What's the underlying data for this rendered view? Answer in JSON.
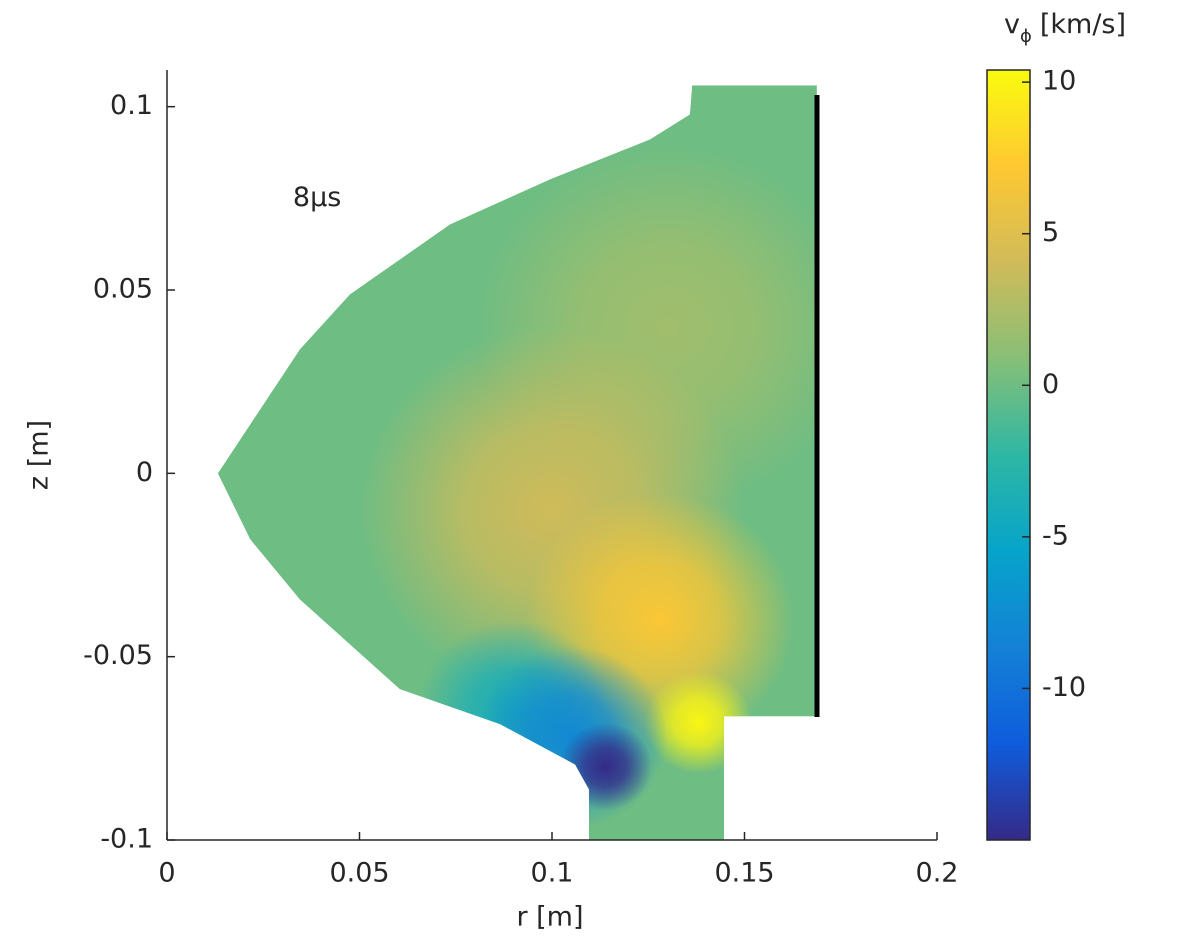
{
  "chart_data": {
    "type": "contour",
    "annotation": {
      "text": "8μs",
      "r": 0.039,
      "z": 0.075,
      "color": "#ff0000"
    },
    "x_label": "r [m]",
    "y_label": "z [m]",
    "xlim": [
      0,
      0.2
    ],
    "xticks": [
      0,
      0.05,
      0.1,
      0.15,
      0.2
    ],
    "ylim": [
      -0.1,
      0.11
    ],
    "yticks": [
      -0.1,
      -0.05,
      0,
      0.05,
      0.1
    ],
    "colorbar_label": {
      "main": "v",
      "sub": "ϕ",
      "unit": "[km/s]"
    },
    "clim": [
      -15,
      10.4
    ],
    "cticks": [
      -10,
      -5,
      0,
      5,
      10
    ],
    "colormap": [
      "#352a87",
      "#0f5cdd",
      "#1481d6",
      "#06a4ca",
      "#2eb7a4",
      "#87bf77",
      "#d1bb59",
      "#fec832",
      "#f9fb0e"
    ],
    "background_value": 0,
    "boundary": {
      "r": [
        0.0132,
        0.0216,
        0.0345,
        0.0605,
        0.0865,
        0.106,
        0.1096,
        0.1096,
        0.1447,
        0.1447,
        0.1688,
        0.1688,
        0.1364,
        0.1358,
        0.1255,
        0.0995,
        0.0735,
        0.0475,
        0.0345
      ],
      "z": [
        0,
        -0.018,
        -0.0344,
        -0.0589,
        -0.0684,
        -0.0794,
        -0.0862,
        -0.1,
        -0.1,
        -0.0663,
        -0.0663,
        0.1058,
        0.1058,
        0.0979,
        0.0911,
        0.0802,
        0.0679,
        0.0488,
        0.0338
      ]
    },
    "blobs": [
      {
        "r": 0.13,
        "z": 0.04,
        "value": 2,
        "radius": 0.05
      },
      {
        "r": 0.1,
        "z": -0.01,
        "value": 4,
        "radius": 0.05
      },
      {
        "r": 0.128,
        "z": -0.04,
        "value": 7,
        "radius": 0.035
      },
      {
        "r": 0.138,
        "z": -0.068,
        "value": 10,
        "radius": 0.014
      },
      {
        "r": 0.09,
        "z": -0.065,
        "value": -4,
        "radius": 0.025
      },
      {
        "r": 0.105,
        "z": -0.072,
        "value": -8,
        "radius": 0.025
      },
      {
        "r": 0.114,
        "z": -0.08,
        "value": -15,
        "radius": 0.012
      }
    ]
  }
}
